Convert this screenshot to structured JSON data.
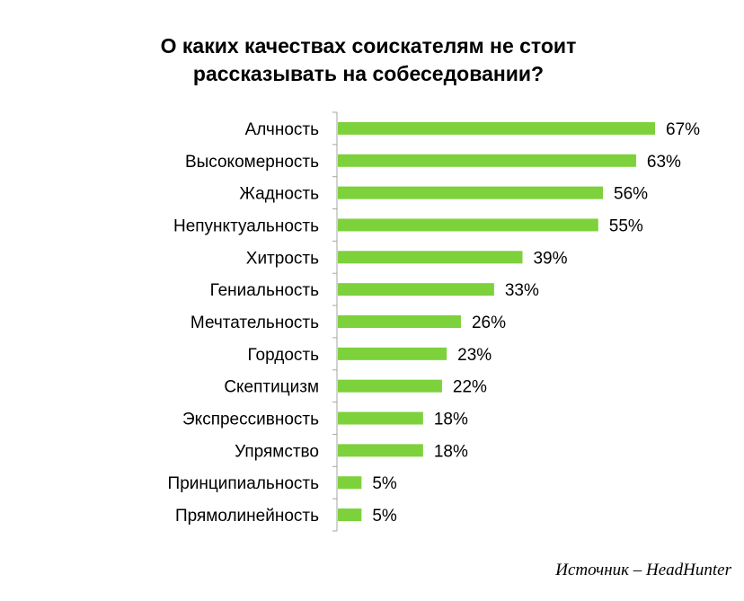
{
  "chart_data": {
    "type": "bar",
    "orientation": "horizontal",
    "title": "О каких качествах соискателям не стоит рассказывать на собеседовании?",
    "title_lines": [
      "О каких качествах соискателям не стоит",
      "рассказывать на собеседовании?"
    ],
    "categories": [
      "Алчность",
      "Высокомерность",
      "Жадность",
      "Непунктуальность",
      "Хитрость",
      "Гениальность",
      "Мечтательность",
      "Гордость",
      "Скептицизм",
      "Экспрессивность",
      "Упрямство",
      "Принципиальность",
      "Прямолинейность"
    ],
    "values": [
      67,
      63,
      56,
      55,
      39,
      33,
      26,
      23,
      22,
      18,
      18,
      5,
      5
    ],
    "value_labels": [
      "67%",
      "63%",
      "56%",
      "55%",
      "39%",
      "33%",
      "26%",
      "23%",
      "22%",
      "18%",
      "18%",
      "5%",
      "5%"
    ],
    "unit": "%",
    "xlim": [
      0,
      67
    ],
    "grid": false,
    "legend": "none",
    "bar_color": "#7DD13B"
  },
  "source": "Источник – HeadHunter"
}
